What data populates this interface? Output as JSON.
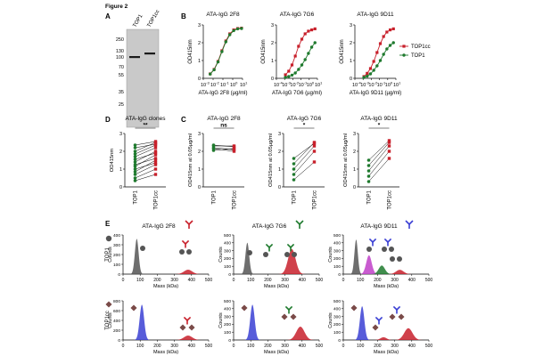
{
  "figure_title": "Figure 2",
  "colors": {
    "red": "#c8202b",
    "green": "#1f7a2e",
    "black": "#000000",
    "gray": "#555555",
    "blue": "#3a3fd4",
    "magenta": "#c040c8",
    "white": "#ffffff",
    "lightgray": "#dcdcdc"
  },
  "panels": {
    "A": {
      "letter": "A",
      "lane_labels": [
        "TOP1",
        "TOP1cc"
      ],
      "mw_markers": [
        "250",
        "130",
        "100",
        "70",
        "55",
        "35",
        "25"
      ]
    },
    "B": {
      "letter": "B"
    },
    "C": {
      "letter": "C"
    },
    "D": {
      "letter": "D"
    },
    "E": {
      "letter": "E"
    }
  },
  "chart_data": [
    {
      "id": "B1",
      "type": "line",
      "title": "ATA-IgG 2F8",
      "xlabel": "ATA-IgG 2F8 (µg/ml)",
      "ylabel": "OD415nm",
      "xscale": "log10",
      "xlim": [
        -3,
        1
      ],
      "ylim": [
        0,
        3
      ],
      "xticks": [
        -3,
        -2,
        -1,
        0,
        1
      ],
      "yticks": [
        0,
        1,
        2,
        3
      ],
      "x": [
        -2.3,
        -1.9,
        -1.5,
        -1.1,
        -0.7,
        -0.3,
        0.1,
        0.5,
        0.9
      ],
      "series": [
        {
          "name": "TOP1cc",
          "color": "red",
          "values": [
            0.25,
            0.5,
            0.95,
            1.55,
            2.1,
            2.5,
            2.72,
            2.8,
            2.82
          ]
        },
        {
          "name": "TOP1",
          "color": "green",
          "values": [
            0.24,
            0.48,
            0.92,
            1.5,
            2.05,
            2.45,
            2.68,
            2.78,
            2.8
          ]
        }
      ]
    },
    {
      "id": "B2",
      "type": "line",
      "title": "ATA-IgG 7G6",
      "xlabel": "ATA-IgG 7G6 (µg/ml)",
      "ylabel": "OD415nm",
      "xscale": "log10",
      "xlim": [
        -4,
        1
      ],
      "ylim": [
        0,
        3
      ],
      "xticks": [
        -4,
        -3,
        -2,
        -1,
        0,
        1
      ],
      "yticks": [
        0,
        1,
        2,
        3
      ],
      "x": [
        -2.9,
        -2.5,
        -2.1,
        -1.7,
        -1.3,
        -0.9,
        -0.5,
        -0.1,
        0.3,
        0.7
      ],
      "series": [
        {
          "name": "TOP1cc",
          "color": "red",
          "values": [
            0.2,
            0.4,
            0.75,
            1.25,
            1.8,
            2.2,
            2.5,
            2.65,
            2.72,
            2.78
          ]
        },
        {
          "name": "TOP1",
          "color": "green",
          "values": [
            0.05,
            0.1,
            0.18,
            0.3,
            0.5,
            0.75,
            1.05,
            1.4,
            1.75,
            2.0
          ]
        }
      ]
    },
    {
      "id": "B3",
      "type": "line",
      "title": "ATA-IgG 9D11",
      "xlabel": "ATA-IgG 9D11 (µg/ml)",
      "ylabel": "OD415nm",
      "xscale": "log10",
      "xlim": [
        -4,
        1
      ],
      "ylim": [
        0,
        3
      ],
      "xticks": [
        -4,
        -3,
        -2,
        -1,
        0,
        1
      ],
      "yticks": [
        0,
        1,
        2,
        3
      ],
      "x": [
        -2.9,
        -2.5,
        -2.1,
        -1.7,
        -1.3,
        -0.9,
        -0.5,
        -0.1,
        0.3,
        0.7
      ],
      "legend": "right",
      "series": [
        {
          "name": "TOP1cc",
          "color": "red",
          "values": [
            0.1,
            0.28,
            0.55,
            0.95,
            1.45,
            1.95,
            2.35,
            2.6,
            2.72,
            2.78
          ]
        },
        {
          "name": "TOP1",
          "color": "green",
          "values": [
            0.05,
            0.12,
            0.25,
            0.45,
            0.7,
            1.0,
            1.35,
            1.65,
            1.85,
            2.0
          ]
        }
      ]
    },
    {
      "id": "D",
      "type": "paired",
      "title": "ATA-IgG clones",
      "ylabel": "OD415nm",
      "ylim": [
        0,
        3
      ],
      "yticks": [
        0,
        1,
        2,
        3
      ],
      "categories": [
        "TOP1",
        "TOP1cc"
      ],
      "significance": "**",
      "pairs": [
        [
          0.35,
          0.7
        ],
        [
          0.5,
          1.0
        ],
        [
          0.7,
          1.25
        ],
        [
          0.85,
          1.5
        ],
        [
          1.0,
          1.35
        ],
        [
          1.15,
          1.8
        ],
        [
          1.25,
          1.6
        ],
        [
          1.4,
          2.0
        ],
        [
          1.55,
          1.9
        ],
        [
          1.7,
          2.2
        ],
        [
          1.85,
          2.35
        ],
        [
          2.0,
          2.5
        ],
        [
          2.2,
          2.4
        ],
        [
          2.35,
          2.55
        ]
      ]
    },
    {
      "id": "C1",
      "type": "paired",
      "title": "ATA-IgG 2F8",
      "ylabel": "OD415nm at 0.05µg/ml",
      "ylim": [
        0,
        3
      ],
      "yticks": [
        0,
        1,
        2,
        3
      ],
      "categories": [
        "TOP1",
        "TOP1cc"
      ],
      "significance": "ns",
      "pairs": [
        [
          2.2,
          2.1
        ],
        [
          2.3,
          2.3
        ],
        [
          2.05,
          2.15
        ],
        [
          2.35,
          2.25
        ],
        [
          2.15,
          2.0
        ]
      ]
    },
    {
      "id": "C2",
      "type": "paired",
      "title": "ATA-IgG 7G6",
      "ylabel": "OD415nm at 0.05µg/ml",
      "ylim": [
        0,
        3
      ],
      "yticks": [
        0,
        1,
        2,
        3
      ],
      "categories": [
        "TOP1",
        "TOP1cc"
      ],
      "significance": "*",
      "pairs": [
        [
          0.4,
          1.4
        ],
        [
          0.7,
          2.0
        ],
        [
          1.0,
          2.3
        ],
        [
          1.3,
          2.5
        ],
        [
          1.6,
          2.45
        ]
      ]
    },
    {
      "id": "C3",
      "type": "paired",
      "title": "ATA-IgG 9D11",
      "ylabel": "OD415nm at 0.05µg/ml",
      "ylim": [
        0,
        3
      ],
      "yticks": [
        0,
        1,
        2,
        3
      ],
      "categories": [
        "TOP1",
        "TOP1cc"
      ],
      "significance": "*",
      "pairs": [
        [
          0.3,
          1.6
        ],
        [
          0.6,
          2.0
        ],
        [
          0.9,
          2.3
        ],
        [
          1.2,
          2.5
        ],
        [
          1.5,
          2.6
        ]
      ]
    },
    {
      "id": "E",
      "type": "area",
      "xlabel": "Mass (kDa)",
      "ylabel": "Counts",
      "xlim": [
        0,
        500
      ],
      "xticks": [
        0,
        100,
        200,
        300,
        400,
        500
      ],
      "ymax": 500,
      "yticks": [
        0,
        100,
        200,
        300,
        400,
        500
      ],
      "column_titles": [
        "ATA-IgG 2F8",
        "ATA-IgG 7G6",
        "ATA-IgG 9D11"
      ],
      "row_labels": [
        "TOP1",
        "TOP1cc"
      ],
      "histograms": [
        {
          "row": 0,
          "col": 0,
          "ymax": 400,
          "yticks": [
            0,
            100,
            200,
            300,
            400
          ],
          "peaks": [
            {
              "mu": 80,
              "sigma": 11,
              "h": 360,
              "color": "gray"
            },
            {
              "mu": 380,
              "sigma": 24,
              "h": 45,
              "color": "red"
            }
          ]
        },
        {
          "row": 0,
          "col": 1,
          "peaks": [
            {
              "mu": 80,
              "sigma": 11,
              "h": 400,
              "color": "gray"
            },
            {
              "mu": 340,
              "sigma": 22,
              "h": 320,
              "color": "red"
            }
          ]
        },
        {
          "row": 0,
          "col": 2,
          "peaks": [
            {
              "mu": 75,
              "sigma": 10,
              "h": 440,
              "color": "gray"
            },
            {
              "mu": 150,
              "sigma": 16,
              "h": 240,
              "color": "magenta"
            },
            {
              "mu": 225,
              "sigma": 18,
              "h": 110,
              "color": "green"
            },
            {
              "mu": 330,
              "sigma": 22,
              "h": 55,
              "color": "red"
            }
          ]
        },
        {
          "row": 1,
          "col": 0,
          "ymax": 800,
          "yticks": [
            0,
            200,
            400,
            600,
            800
          ],
          "peaks": [
            {
              "mu": 110,
              "sigma": 13,
              "h": 720,
              "color": "blue"
            },
            {
              "mu": 380,
              "sigma": 24,
              "h": 90,
              "color": "red"
            }
          ]
        },
        {
          "row": 1,
          "col": 1,
          "ymax": 500,
          "yticks": [
            0,
            100,
            200,
            300,
            400,
            500
          ],
          "peaks": [
            {
              "mu": 110,
              "sigma": 13,
              "h": 450,
              "color": "blue"
            },
            {
              "mu": 390,
              "sigma": 24,
              "h": 170,
              "color": "red"
            }
          ]
        },
        {
          "row": 1,
          "col": 2,
          "ymax": 500,
          "yticks": [
            0,
            100,
            200,
            300,
            400,
            500
          ],
          "peaks": [
            {
              "mu": 110,
              "sigma": 13,
              "h": 430,
              "color": "blue"
            },
            {
              "mu": 235,
              "sigma": 18,
              "h": 35,
              "color": "red"
            },
            {
              "mu": 380,
              "sigma": 24,
              "h": 150,
              "color": "red"
            }
          ]
        }
      ]
    }
  ]
}
